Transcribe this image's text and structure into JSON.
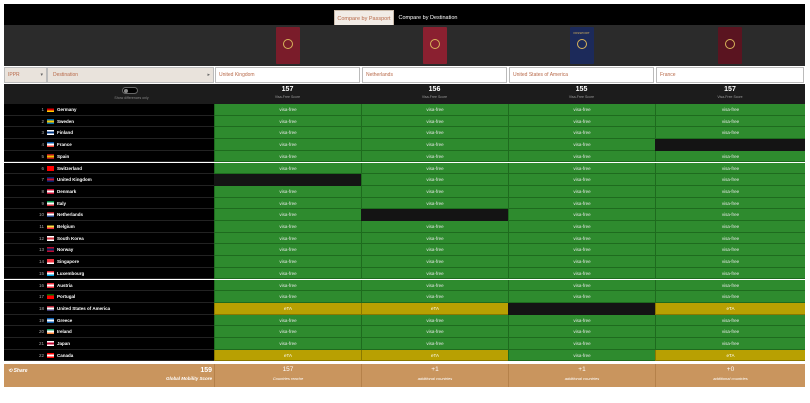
{
  "tabs": {
    "by_passport": "Compare by Passport",
    "by_destination": "Compare by Destination"
  },
  "selector": {
    "left_value": "IPPR",
    "destination_label": "Destination"
  },
  "toggle_label": "Show differences only",
  "columns": [
    {
      "country": "United Kingdom",
      "score": "157",
      "score_label": "Visa-Free Score",
      "footer_value": "157",
      "footer_label": "Countries reache",
      "passport_color": "#7a1c2a",
      "passport_text": ""
    },
    {
      "country": "Netherlands",
      "score": "156",
      "score_label": "Visa-Free Score",
      "footer_value": "+1",
      "footer_label": "additional countries",
      "passport_color": "#8a2030",
      "passport_text": ""
    },
    {
      "country": "United States of America",
      "score": "155",
      "score_label": "Visa-Free Score",
      "footer_value": "+1",
      "footer_label": "additional countries",
      "passport_color": "#1c2a5a",
      "passport_text": "PASSPORT"
    },
    {
      "country": "France",
      "score": "157",
      "score_label": "Visa-Free Score",
      "footer_value": "+0",
      "footer_label": "additional countries",
      "passport_color": "#5a1420",
      "passport_text": ""
    }
  ],
  "rows": [
    {
      "rank": "1",
      "name": "Germany",
      "flag": [
        "#000000",
        "#dd0000",
        "#ffce00"
      ],
      "cells": [
        "visa-free",
        "visa-free",
        "visa-free",
        "visa-free"
      ]
    },
    {
      "rank": "2",
      "name": "Sweden",
      "flag": [
        "#006aa7",
        "#fecc00",
        "#006aa7"
      ],
      "cells": [
        "visa-free",
        "visa-free",
        "visa-free",
        "visa-free"
      ]
    },
    {
      "rank": "3",
      "name": "Finland",
      "flag": [
        "#ffffff",
        "#003580",
        "#ffffff"
      ],
      "cells": [
        "visa-free",
        "visa-free",
        "visa-free",
        "visa-free"
      ]
    },
    {
      "rank": "4",
      "name": "France",
      "flag": [
        "#0055a4",
        "#ffffff",
        "#ef4135"
      ],
      "cells": [
        "visa-free",
        "visa-free",
        "visa-free",
        ""
      ]
    },
    {
      "rank": "5",
      "name": "Spain",
      "flag": [
        "#aa151b",
        "#f1bf00",
        "#aa151b"
      ],
      "cells": [
        "visa-free",
        "visa-free",
        "visa-free",
        "visa-free"
      ]
    },
    {
      "rank": "6",
      "name": "Switzerland",
      "flag": [
        "#ff0000",
        "#ff0000",
        "#ff0000"
      ],
      "cells": [
        "visa-free",
        "visa-free",
        "visa-free",
        "visa-free"
      ]
    },
    {
      "rank": "7",
      "name": "United Kingdom",
      "flag": [
        "#012169",
        "#c8102e",
        "#012169"
      ],
      "cells": [
        "",
        "visa-free",
        "visa-free",
        "visa-free"
      ]
    },
    {
      "rank": "8",
      "name": "Denmark",
      "flag": [
        "#c60c30",
        "#ffffff",
        "#c60c30"
      ],
      "cells": [
        "visa-free",
        "visa-free",
        "visa-free",
        "visa-free"
      ]
    },
    {
      "rank": "9",
      "name": "Italy",
      "flag": [
        "#009246",
        "#ffffff",
        "#ce2b37"
      ],
      "cells": [
        "visa-free",
        "visa-free",
        "visa-free",
        "visa-free"
      ]
    },
    {
      "rank": "10",
      "name": "Netherlands",
      "flag": [
        "#ae1c28",
        "#ffffff",
        "#21468b"
      ],
      "cells": [
        "visa-free",
        "",
        "visa-free",
        "visa-free"
      ]
    },
    {
      "rank": "11",
      "name": "Belgium",
      "flag": [
        "#000000",
        "#fae042",
        "#ed2939"
      ],
      "cells": [
        "visa-free",
        "visa-free",
        "visa-free",
        "visa-free"
      ]
    },
    {
      "rank": "12",
      "name": "South Korea",
      "flag": [
        "#ffffff",
        "#cd2e3a",
        "#ffffff"
      ],
      "cells": [
        "visa-free",
        "visa-free",
        "visa-free",
        "visa-free"
      ]
    },
    {
      "rank": "13",
      "name": "Norway",
      "flag": [
        "#ba0c2f",
        "#00205b",
        "#ba0c2f"
      ],
      "cells": [
        "visa-free",
        "visa-free",
        "visa-free",
        "visa-free"
      ]
    },
    {
      "rank": "14",
      "name": "Singapore",
      "flag": [
        "#ef3340",
        "#ef3340",
        "#ffffff"
      ],
      "cells": [
        "visa-free",
        "visa-free",
        "visa-free",
        "visa-free"
      ]
    },
    {
      "rank": "15",
      "name": "Luxembourg",
      "flag": [
        "#ed2939",
        "#ffffff",
        "#00a1de"
      ],
      "cells": [
        "visa-free",
        "visa-free",
        "visa-free",
        "visa-free"
      ]
    },
    {
      "rank": "16",
      "name": "Austria",
      "flag": [
        "#ed2939",
        "#ffffff",
        "#ed2939"
      ],
      "cells": [
        "visa-free",
        "visa-free",
        "visa-free",
        "visa-free"
      ]
    },
    {
      "rank": "17",
      "name": "Portugal",
      "flag": [
        "#006600",
        "#ff0000",
        "#ff0000"
      ],
      "cells": [
        "visa-free",
        "visa-free",
        "visa-free",
        "visa-free"
      ]
    },
    {
      "rank": "18",
      "name": "United States of America",
      "flag": [
        "#b22234",
        "#ffffff",
        "#3c3b6e"
      ],
      "cells": [
        "eTA",
        "eTA",
        "",
        "eTA"
      ]
    },
    {
      "rank": "19",
      "name": "Greece",
      "flag": [
        "#0d5eaf",
        "#ffffff",
        "#0d5eaf"
      ],
      "cells": [
        "visa-free",
        "visa-free",
        "visa-free",
        "visa-free"
      ]
    },
    {
      "rank": "20",
      "name": "Ireland",
      "flag": [
        "#169b62",
        "#ffffff",
        "#ff883e"
      ],
      "cells": [
        "visa-free",
        "visa-free",
        "visa-free",
        "visa-free"
      ]
    },
    {
      "rank": "21",
      "name": "Japan",
      "flag": [
        "#ffffff",
        "#bc002d",
        "#ffffff"
      ],
      "cells": [
        "visa-free",
        "visa-free",
        "visa-free",
        "visa-free"
      ]
    },
    {
      "rank": "22",
      "name": "Canada",
      "flag": [
        "#ff0000",
        "#ffffff",
        "#ff0000"
      ],
      "cells": [
        "eTA",
        "eTA",
        "visa-free",
        "eTA"
      ]
    }
  ],
  "footer": {
    "share_label": "Share",
    "global_score": "159",
    "global_label": "Global Mobility Score"
  }
}
